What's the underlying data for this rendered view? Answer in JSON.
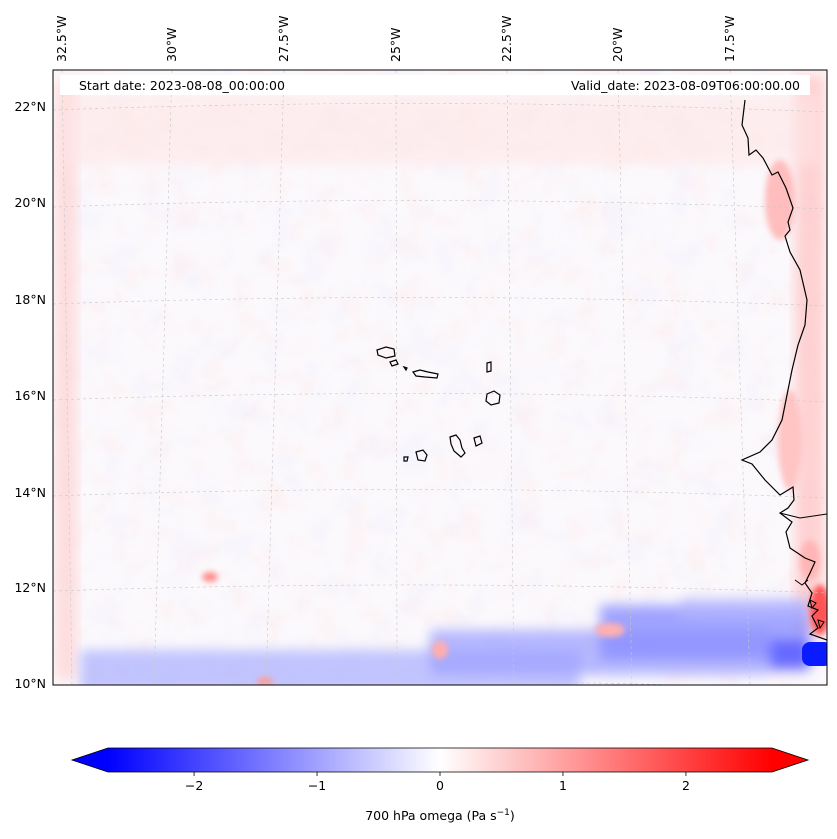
{
  "header": {
    "start_date": "Start date: 2023-08-08_00:00:00",
    "valid_date": "Valid_date: 2023-08-09T06:00:00.00"
  },
  "map": {
    "projection": "lambert-conic",
    "lon_labels": [
      "32.5°W",
      "30°W",
      "27.5°W",
      "25°W",
      "22.5°W",
      "20°W",
      "17.5°W"
    ],
    "lat_labels": [
      "22°N",
      "20°N",
      "18°N",
      "16°N",
      "14°N",
      "12°N",
      "10°N"
    ],
    "gridlines": "dashed-gray",
    "features": [
      "cape-verde-islands",
      "west-africa-coastline"
    ]
  },
  "colorbar": {
    "label_text": "700 hPa omega (Pa s",
    "label_sup": "−1",
    "label_close": ")",
    "ticks": [
      "−2",
      "−1",
      "0",
      "1",
      "2"
    ],
    "tick_values": [
      -2,
      -1,
      0,
      1,
      2
    ],
    "vmin": -2.7,
    "vmax": 2.7,
    "extend": "both",
    "colormap": "bwr",
    "colors": {
      "min": "#0000ff",
      "mid": "#ffffff",
      "max": "#ff0000"
    }
  }
}
